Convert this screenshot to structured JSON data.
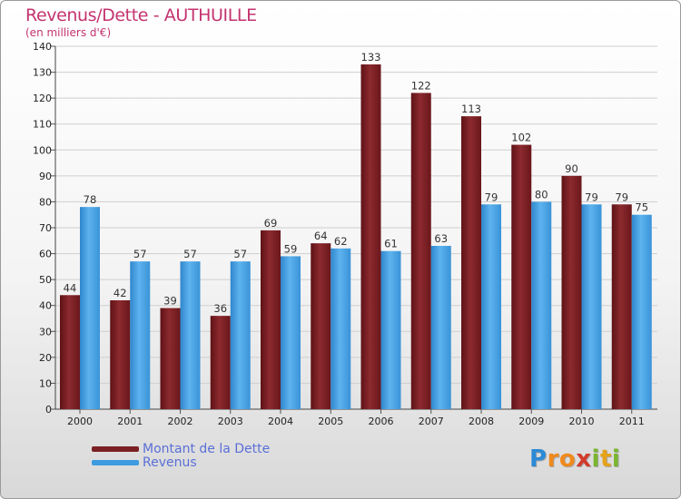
{
  "title": "Revenus/Dette - AUTHUILLE",
  "subtitle": "(en milliers d'€)",
  "colors": {
    "dette": "#7a1f23",
    "revenus": "#3d9be0",
    "title": "#c4346f",
    "legend_text": "#5a6fd6"
  },
  "logo": {
    "text": "Proxiti",
    "letters": [
      "P",
      "r",
      "o",
      "x",
      "i",
      "t",
      "i"
    ],
    "letter_colors": [
      "#2d8ad6",
      "#f08a1c",
      "#f08a1c",
      "#d33b2b",
      "#7ab530",
      "#e6a21a",
      "#7ab530"
    ]
  },
  "chart_data": {
    "type": "bar",
    "title": "Revenus/Dette - AUTHUILLE",
    "subtitle": "(en milliers d'€)",
    "categories": [
      "2000",
      "2001",
      "2002",
      "2003",
      "2004",
      "2005",
      "2006",
      "2007",
      "2008",
      "2009",
      "2010",
      "2011"
    ],
    "series": [
      {
        "name": "Montant de la Dette",
        "values": [
          44,
          42,
          39,
          36,
          69,
          64,
          133,
          122,
          113,
          102,
          90,
          79
        ]
      },
      {
        "name": "Revenus",
        "values": [
          78,
          57,
          57,
          57,
          59,
          62,
          61,
          63,
          79,
          80,
          79,
          75
        ]
      }
    ],
    "ylim": [
      0,
      140
    ],
    "yticks": [
      0,
      10,
      20,
      30,
      40,
      50,
      60,
      70,
      80,
      90,
      100,
      110,
      120,
      130,
      140
    ],
    "grid": true,
    "legend": "bottom-left"
  }
}
